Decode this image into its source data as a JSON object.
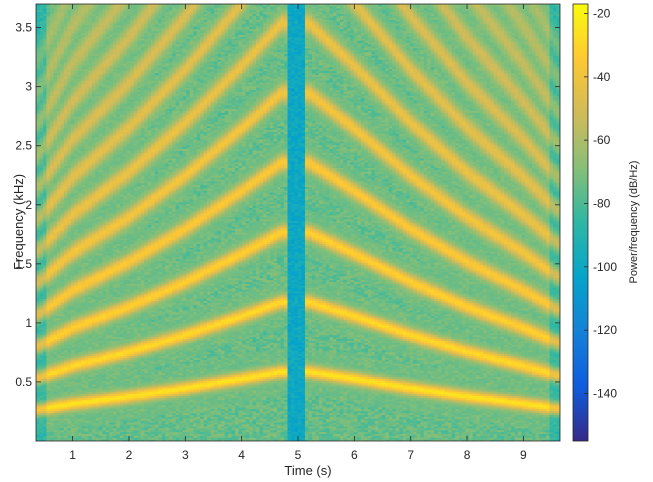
{
  "chart_data": {
    "type": "heatmap",
    "xlabel": "Time (s)",
    "ylabel": "Frequency (kHz)",
    "colorbar_label": "Power/frequency (dB/Hz)",
    "xlim": [
      0.35,
      9.65
    ],
    "ylim": [
      0.0,
      3.7
    ],
    "clim": [
      -155,
      -17
    ],
    "xticks": [
      1,
      2,
      3,
      4,
      5,
      6,
      7,
      8,
      9
    ],
    "yticks": [
      0.5,
      1,
      1.5,
      2,
      2.5,
      3,
      3.5
    ],
    "cticks": [
      -20,
      -40,
      -60,
      -80,
      -100,
      -120,
      -140
    ],
    "colormap": "parula",
    "background_level_db": -75,
    "silent_interval_s": [
      4.8,
      5.1
    ],
    "silent_level_db": -100,
    "harmonics": [
      1,
      2,
      3,
      4,
      5,
      6,
      7,
      8,
      9,
      10,
      11,
      12
    ],
    "fundamental_hz": [
      {
        "time": 0.4,
        "f0": 0.27
      },
      {
        "time": 1.0,
        "f0": 0.32
      },
      {
        "time": 2.0,
        "f0": 0.38
      },
      {
        "time": 3.0,
        "f0": 0.45
      },
      {
        "time": 4.0,
        "f0": 0.53
      },
      {
        "time": 4.7,
        "f0": 0.59
      },
      {
        "time": 5.2,
        "f0": 0.59
      },
      {
        "time": 6.0,
        "f0": 0.53
      },
      {
        "time": 7.0,
        "f0": 0.45
      },
      {
        "time": 8.0,
        "f0": 0.38
      },
      {
        "time": 9.0,
        "f0": 0.32
      },
      {
        "time": 9.6,
        "f0": 0.28
      }
    ],
    "peak_level_db": -25
  },
  "colors": {
    "axis": "#262626",
    "parula": [
      "#352a87",
      "#0f5cdd",
      "#1481d6",
      "#06a4ca",
      "#2eb7a4",
      "#87bf77",
      "#d1bb59",
      "#fec832",
      "#f9fb0e"
    ]
  }
}
